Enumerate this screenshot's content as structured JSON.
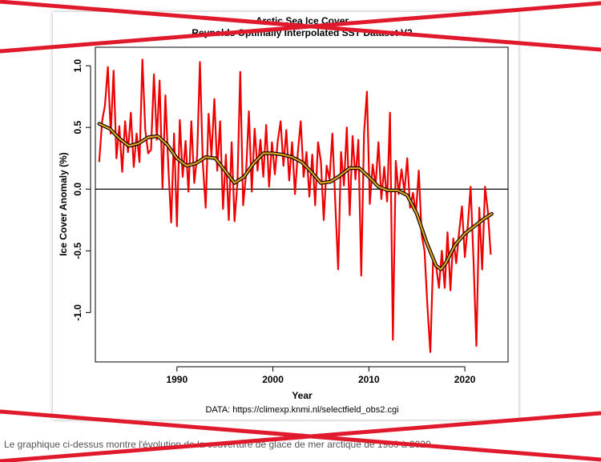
{
  "chart_data": {
    "type": "line",
    "title": "Arctic Sea Ice Cover",
    "subtitle": "Reynolds Optimally Interpolated SST Dataset V2",
    "xlabel": "Year",
    "ylabel": "Ice Cover Anomaly (%)",
    "xlim": [
      1981.5,
      2024.5
    ],
    "ylim": [
      -1.4,
      1.15
    ],
    "x_ticks": [
      1990,
      2000,
      2010,
      2020
    ],
    "y_ticks": [
      1.0,
      0.5,
      0.0,
      -0.5,
      -1.0
    ],
    "y_tick_labels": [
      "1.0",
      "0.5",
      "0.0",
      "-0.5",
      "-1.0"
    ],
    "reference_line_y": 0.0,
    "grid": false,
    "note": "DATA: https://climexp.knmi.nl/selectfield_obs2.cgi",
    "series": [
      {
        "color": "#ee0000",
        "x": [
          1981.9,
          1982.2,
          1982.5,
          1982.8,
          1983.1,
          1983.4,
          1983.7,
          1984.0,
          1984.3,
          1984.6,
          1984.9,
          1985.2,
          1985.5,
          1985.8,
          1986.1,
          1986.4,
          1986.7,
          1987.0,
          1987.3,
          1987.6,
          1987.9,
          1988.2,
          1988.5,
          1988.8,
          1989.1,
          1989.4,
          1989.7,
          1990.0,
          1990.3,
          1990.6,
          1990.9,
          1991.2,
          1991.5,
          1991.8,
          1992.1,
          1992.4,
          1992.7,
          1993.0,
          1993.3,
          1993.6,
          1993.9,
          1994.2,
          1994.5,
          1994.8,
          1995.1,
          1995.4,
          1995.7,
          1996.0,
          1996.3,
          1996.6,
          1996.9,
          1997.2,
          1997.5,
          1997.8,
          1998.1,
          1998.4,
          1998.7,
          1999.0,
          1999.3,
          1999.6,
          1999.9,
          2000.2,
          2000.5,
          2000.8,
          2001.1,
          2001.4,
          2001.7,
          2002.0,
          2002.3,
          2002.6,
          2002.9,
          2003.2,
          2003.5,
          2003.8,
          2004.1,
          2004.4,
          2004.7,
          2005.0,
          2005.3,
          2005.6,
          2005.9,
          2006.2,
          2006.5,
          2006.8,
          2007.1,
          2007.4,
          2007.7,
          2008.0,
          2008.3,
          2008.6,
          2008.9,
          2009.2,
          2009.5,
          2009.8,
          2010.1,
          2010.4,
          2010.7,
          2011.0,
          2011.3,
          2011.6,
          2011.9,
          2012.2,
          2012.5,
          2012.8,
          2013.1,
          2013.4,
          2013.7,
          2014.0,
          2014.3,
          2014.6,
          2014.9,
          2015.2,
          2015.5,
          2015.8,
          2016.1,
          2016.4,
          2016.7,
          2017.0,
          2017.3,
          2017.6,
          2017.9,
          2018.2,
          2018.5,
          2018.8,
          2019.1,
          2019.4,
          2019.7,
          2020.0,
          2020.3,
          2020.6,
          2020.9,
          2021.2,
          2021.5,
          2021.8,
          2022.1,
          2022.4,
          2022.7
        ],
        "values": [
          0.22,
          0.55,
          0.68,
          0.99,
          0.45,
          0.96,
          0.25,
          0.51,
          0.14,
          0.55,
          0.3,
          0.62,
          0.18,
          0.45,
          0.22,
          1.05,
          0.48,
          0.29,
          0.32,
          0.93,
          0.4,
          0.88,
          0.01,
          0.76,
          0.19,
          -0.27,
          0.45,
          -0.3,
          0.56,
          0.1,
          0.39,
          -0.02,
          0.55,
          0.05,
          0.27,
          1.03,
          0.21,
          -0.15,
          0.61,
          0.27,
          0.73,
          0.15,
          0.55,
          -0.16,
          0.28,
          -0.25,
          0.38,
          -0.26,
          0.05,
          0.95,
          -0.13,
          0.12,
          0.63,
          -0.02,
          0.49,
          0.15,
          0.4,
          0.1,
          0.52,
          0.02,
          0.38,
          0.12,
          0.39,
          0.55,
          0.19,
          0.48,
          0.07,
          0.38,
          -0.04,
          0.3,
          0.55,
          0.1,
          0.3,
          -0.06,
          0.28,
          -0.13,
          0.38,
          0.22,
          -0.25,
          0.19,
          0.08,
          0.45,
          -0.11,
          -0.65,
          0.3,
          0.03,
          0.5,
          -0.21,
          0.43,
          0.08,
          0.4,
          -0.7,
          0.45,
          0.79,
          -0.12,
          0.2,
          0.03,
          0.38,
          -0.08,
          0.18,
          -0.1,
          0.62,
          -1.22,
          0.23,
          -0.04,
          0.16,
          -0.02,
          0.25,
          -0.15,
          -0.03,
          -0.2,
          0.15,
          -0.37,
          -0.5,
          -0.95,
          -1.32,
          -0.55,
          -0.62,
          -0.8,
          -0.5,
          -0.8,
          -0.35,
          -0.82,
          -0.4,
          -0.6,
          -0.35,
          -0.14,
          -0.55,
          -0.3,
          0.02,
          -0.57,
          -1.27,
          -0.15,
          -0.65,
          0.02,
          -0.18,
          -0.53
        ]
      },
      {
        "color": "#e3a020",
        "outline_color": "#000000",
        "x": [
          1981.9,
          1983.0,
          1984.0,
          1985.0,
          1986.0,
          1987.0,
          1988.0,
          1989.0,
          1990.0,
          1991.0,
          1992.0,
          1993.0,
          1994.0,
          1995.0,
          1996.0,
          1997.0,
          1998.0,
          1999.0,
          2000.0,
          2001.0,
          2002.0,
          2003.0,
          2004.0,
          2005.0,
          2006.0,
          2007.0,
          2008.0,
          2009.0,
          2010.0,
          2011.0,
          2012.0,
          2013.0,
          2014.0,
          2015.0,
          2016.0,
          2017.0,
          2017.5,
          2018.0,
          2019.0,
          2020.0,
          2021.0,
          2022.0,
          2022.8
        ],
        "values": [
          0.53,
          0.49,
          0.41,
          0.35,
          0.37,
          0.42,
          0.43,
          0.36,
          0.25,
          0.19,
          0.21,
          0.26,
          0.25,
          0.15,
          0.05,
          0.1,
          0.21,
          0.29,
          0.29,
          0.28,
          0.26,
          0.22,
          0.14,
          0.05,
          0.06,
          0.11,
          0.17,
          0.17,
          0.1,
          0.02,
          -0.01,
          -0.01,
          -0.05,
          -0.2,
          -0.43,
          -0.62,
          -0.65,
          -0.6,
          -0.45,
          -0.36,
          -0.3,
          -0.24,
          -0.2
        ]
      }
    ]
  },
  "caption_text": "Le graphique ci-dessus montre l'évolution de la couverture de glace de mer arctique de 1980 à 2020."
}
